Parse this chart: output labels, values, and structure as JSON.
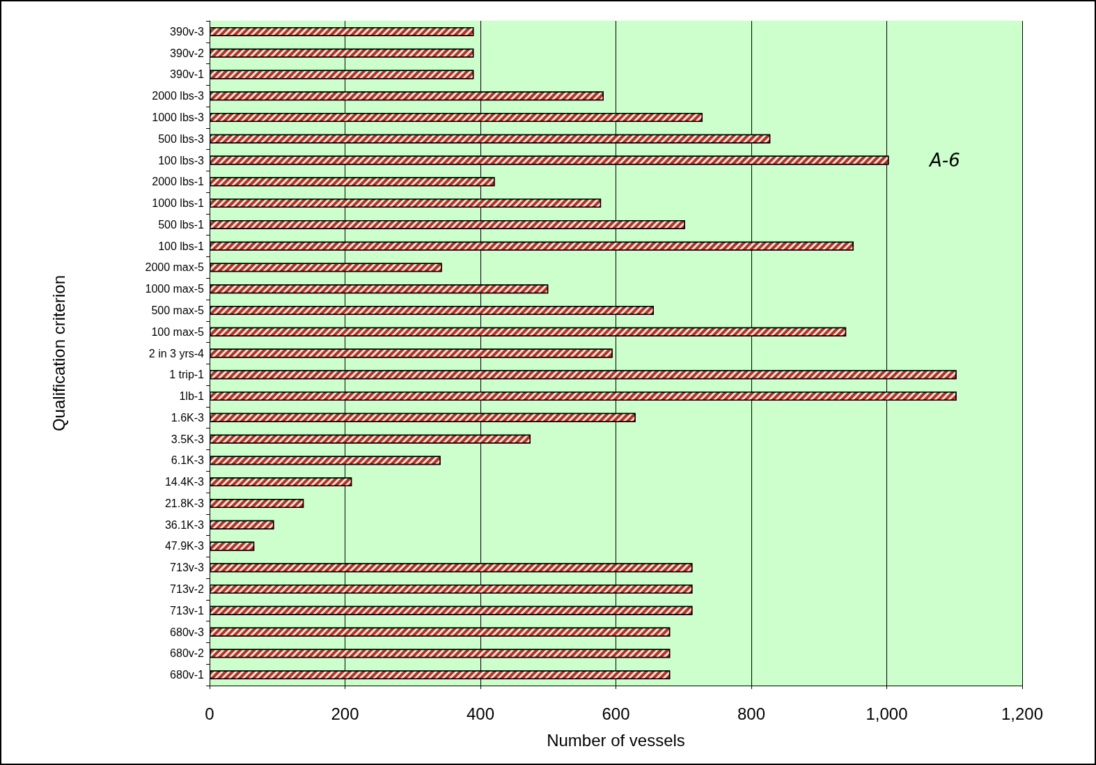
{
  "chart_data": {
    "type": "bar",
    "orientation": "horizontal",
    "xlabel": "Number of vessels",
    "ylabel": "Qualification criterion",
    "categories": [
      "390v-3",
      "390v-2",
      "390v-1",
      "2000 lbs-3",
      "1000 lbs-3",
      "500 lbs-3",
      "100 lbs-3",
      "2000 lbs-1",
      "1000 lbs-1",
      "500 lbs-1",
      "100 lbs-1",
      "2000 max-5",
      "1000 max-5",
      "500 max-5",
      "100 max-5",
      "2 in 3 yrs-4",
      "1 trip-1",
      "1lb-1",
      "1.6K-3",
      "3.5K-3",
      "6.1K-3",
      "14.4K-3",
      "21.8K-3",
      "36.1K-3",
      "47.9K-3",
      "713v-3",
      "713v-2",
      "713v-1",
      "680v-3",
      "680v-2",
      "680v-1"
    ],
    "values": [
      390,
      390,
      390,
      582,
      728,
      828,
      1003,
      421,
      578,
      702,
      951,
      343,
      500,
      656,
      940,
      595,
      1103,
      1103,
      629,
      474,
      341,
      210,
      139,
      95,
      66,
      713,
      713,
      713,
      680,
      680,
      680
    ],
    "color": "#b3331f",
    "xlim": [
      0,
      1200
    ],
    "xticks": [
      0,
      200,
      400,
      600,
      800,
      {
        "value": 1000,
        "label": "1,000"
      },
      {
        "value": 1200,
        "label": "1,200"
      }
    ],
    "grid": "x",
    "annotations": [
      "A-6"
    ]
  }
}
